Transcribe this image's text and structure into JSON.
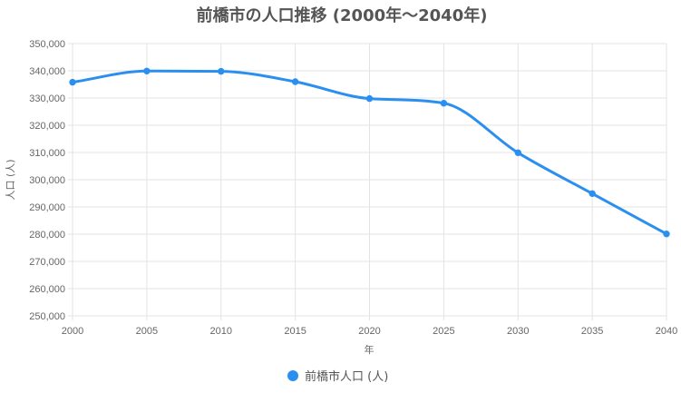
{
  "chart_data": {
    "type": "line",
    "title": "前橋市の人口推移 (2000年～2040年)",
    "xlabel": "年",
    "ylabel": "人口 (人)",
    "x": [
      2000,
      2005,
      2010,
      2015,
      2020,
      2025,
      2030,
      2035,
      2040
    ],
    "x_tick_labels": [
      "2000",
      "2005",
      "2010",
      "2015",
      "2020",
      "2025",
      "2030",
      "2035",
      "2040"
    ],
    "ylim": [
      250000,
      350000
    ],
    "y_tick_labels": [
      "350,000",
      "340,000",
      "330,000",
      "320,000",
      "310,000",
      "300,000",
      "290,000",
      "280,000",
      "270,000",
      "260,000",
      "250,000"
    ],
    "y_ticks": [
      350000,
      340000,
      330000,
      320000,
      310000,
      300000,
      290000,
      280000,
      270000,
      260000,
      250000
    ],
    "grid": true,
    "legend_position": "bottom-center",
    "series": [
      {
        "name": "前橋市人口 (人)",
        "color": "#2b8ff0",
        "values": [
          335800,
          339900,
          339800,
          336000,
          329800,
          328100,
          309900,
          294900,
          280100
        ]
      }
    ]
  }
}
